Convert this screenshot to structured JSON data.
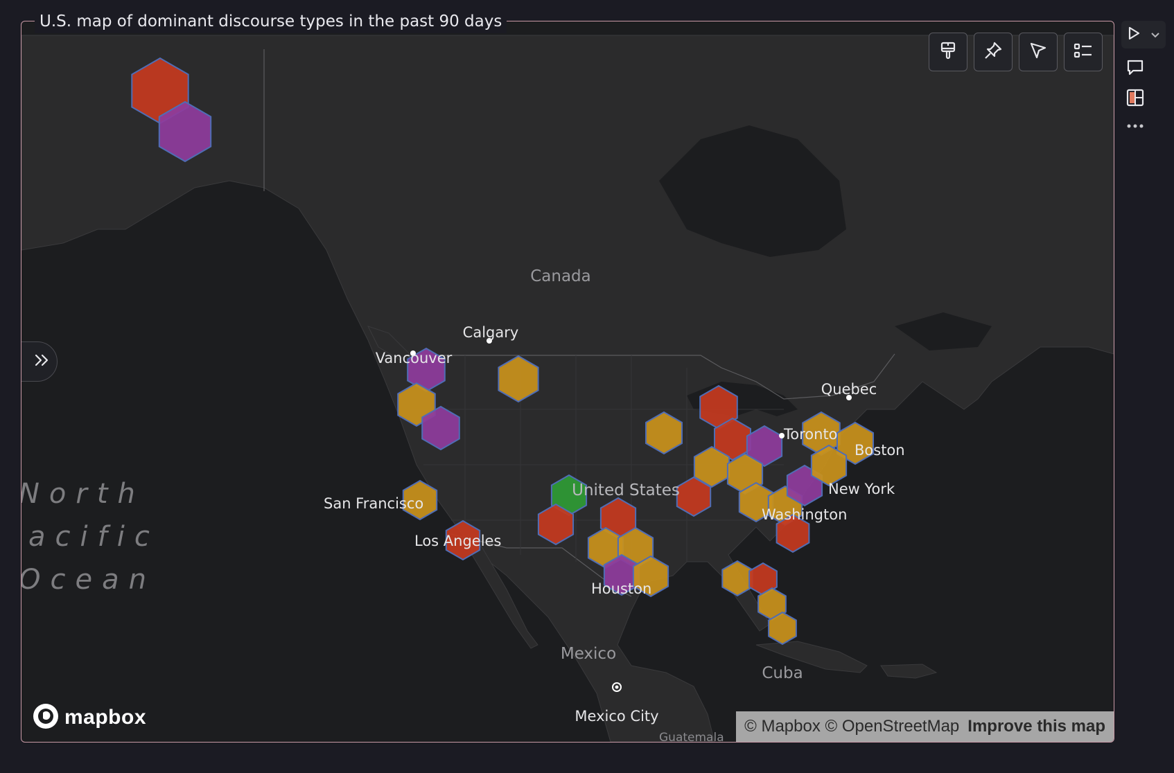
{
  "panel": {
    "title": "U.S. map of dominant discourse types in the past 90 days"
  },
  "map": {
    "labels": {
      "canada": "Canada",
      "calgary": "Calgary",
      "vancouver": "Vancouver",
      "quebec": "Quebec",
      "toronto": "Toronto",
      "boston": "Boston",
      "united_states": "United States",
      "new_york": "New York",
      "washington": "Washington",
      "san_francisco": "San Francisco",
      "los_angeles": "Los Angeles",
      "houston": "Houston",
      "mexico": "Mexico",
      "cuba": "Cuba",
      "mexico_city": "Mexico City",
      "guatemala": "Guatemala",
      "ocean_line1": "North",
      "ocean_line2": "acific",
      "ocean_line3": "Ocean"
    },
    "colors": {
      "red": "#c4391f",
      "orange": "#c8911c",
      "purple": "#8e3b9c",
      "green": "#2e9a35",
      "hex_stroke": "#4f6db5",
      "land": "#2a2a2b",
      "water": "#1c1d1f"
    }
  },
  "toolbar": {
    "icons": [
      "brush-icon",
      "pin-icon",
      "pointer-icon",
      "legend-list-icon"
    ]
  },
  "mapbox_logo": "mapbox",
  "attribution": {
    "copyright": "© Mapbox © OpenStreetMap",
    "improve": "Improve this map"
  }
}
